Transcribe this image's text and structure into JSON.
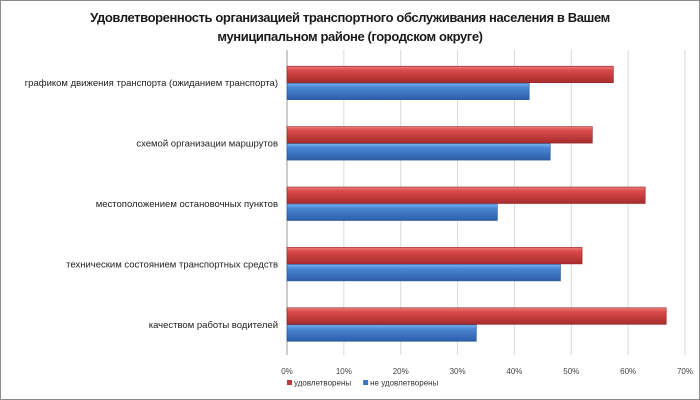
{
  "chart_data": {
    "type": "bar",
    "orientation": "horizontal",
    "title": [
      "Удовлетворенность организацией транспортного обслуживания населения в Вашем",
      "муниципальном районе (городском округе)"
    ],
    "categories": [
      "графиком движения транспорта (ожиданием транспорта)",
      "схемой организации маршрутов",
      "местоположением остановочных пунктов",
      "техническим состоянием транспортных средств",
      "качеством работы водителей"
    ],
    "series": [
      {
        "name": "удовлетворены",
        "color": "#c0393b",
        "values": [
          57.4,
          53.7,
          63.0,
          51.9,
          66.7
        ]
      },
      {
        "name": "не удовлетворены",
        "color": "#3b74c4",
        "values": [
          42.6,
          46.3,
          37.0,
          48.1,
          33.3
        ]
      }
    ],
    "xlim": [
      0,
      70
    ],
    "xticks": [
      "0%",
      "10%",
      "20%",
      "30%",
      "40%",
      "50%",
      "60%",
      "70%"
    ],
    "grid": true,
    "legend": "bottom-left"
  }
}
